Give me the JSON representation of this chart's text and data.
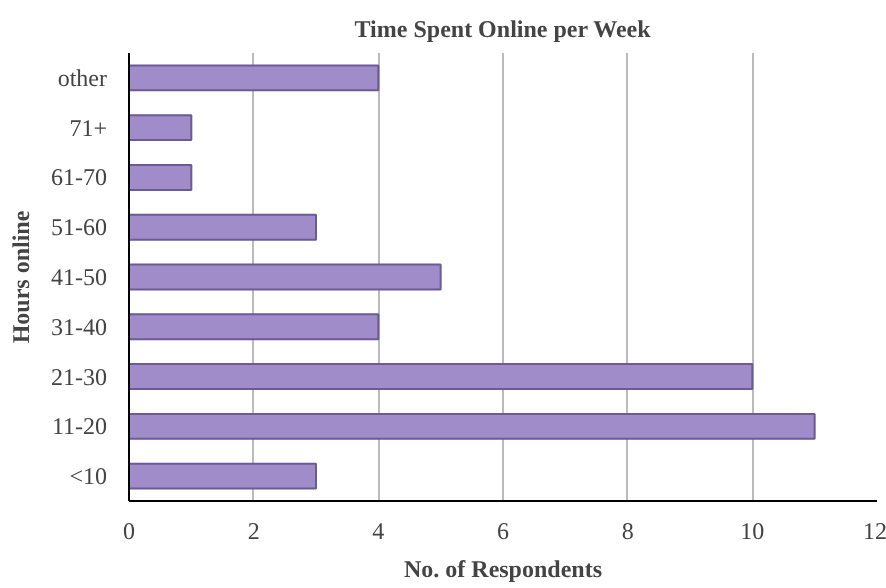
{
  "chart_data": {
    "type": "bar",
    "orientation": "horizontal",
    "title": "Time Spent Online per Week",
    "xlabel": "No. of Respondents",
    "ylabel": "Hours online",
    "categories": [
      "other",
      "71+",
      "61-70",
      "51-60",
      "41-50",
      "31-40",
      "21-30",
      "11-20",
      "<10"
    ],
    "values": [
      4,
      1,
      1,
      3,
      5,
      4,
      10,
      11,
      3
    ],
    "color": "#a08cc8",
    "xlim": [
      0,
      12
    ],
    "xticks": [
      0,
      2,
      4,
      6,
      8,
      10,
      12
    ],
    "grid": "x"
  }
}
